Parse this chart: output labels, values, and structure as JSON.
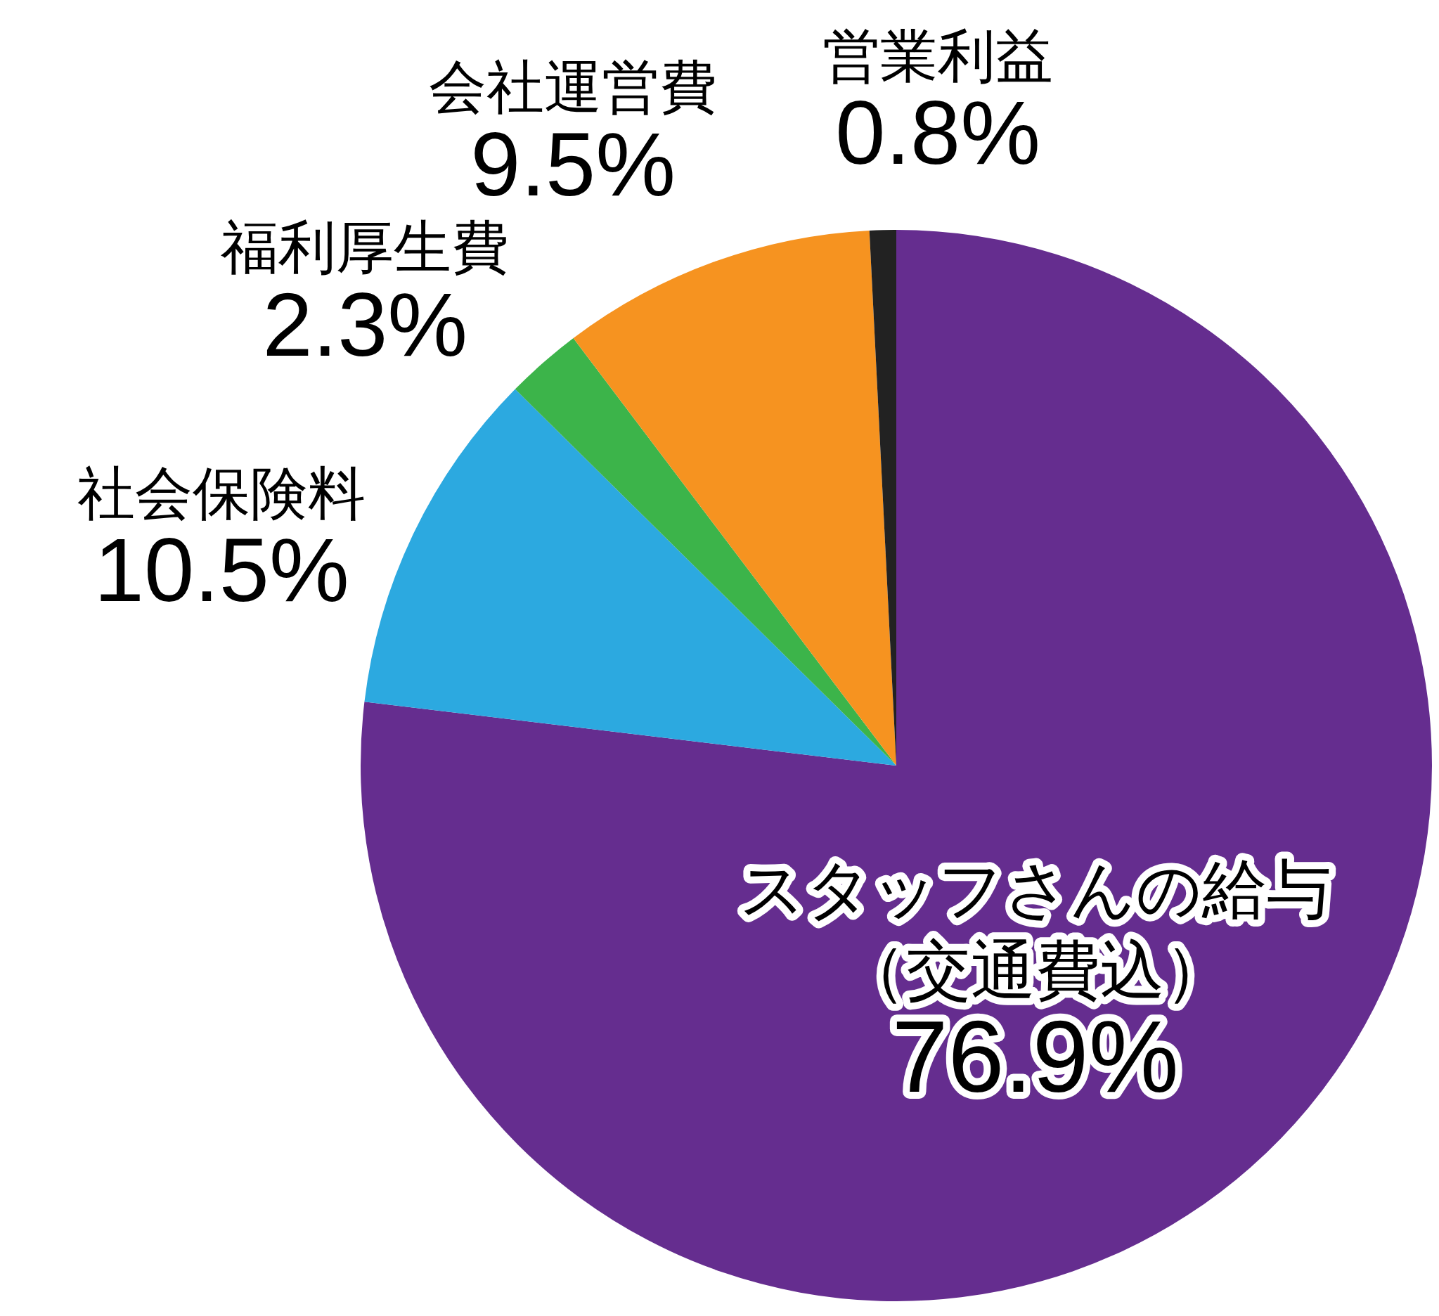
{
  "chart_data": {
    "type": "pie",
    "categories": [
      "スタッフさんの給与（交通費込）",
      "社会保険料",
      "福利厚生費",
      "会社運営費",
      "営業利益"
    ],
    "values": [
      76.9,
      10.5,
      2.3,
      9.5,
      0.8
    ],
    "colors": [
      "#652d8f",
      "#2ca9e0",
      "#3cb44a",
      "#f69320",
      "#222222"
    ],
    "value_labels": [
      "76.9%",
      "10.5%",
      "2.3%",
      "9.5%",
      "0.8%"
    ],
    "legend": false
  }
}
